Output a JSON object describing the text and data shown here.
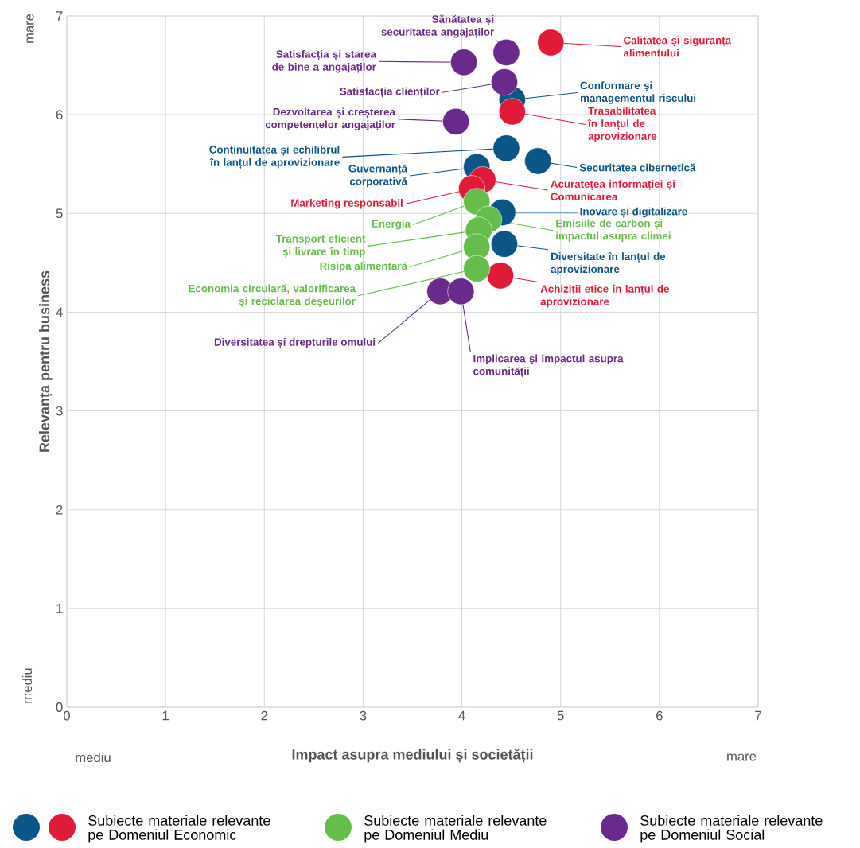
{
  "chart_data": {
    "type": "scatter",
    "xlabel": "Impact asupra mediului și societății",
    "ylabel": "Relevanța pentru business",
    "xlim": [
      0,
      7
    ],
    "ylim": [
      0,
      7
    ],
    "xticks": [
      0,
      1,
      2,
      3,
      4,
      5,
      6,
      7
    ],
    "yticks": [
      0,
      1,
      2,
      3,
      4,
      5,
      6,
      7
    ],
    "grid": true,
    "legend": "bottom",
    "marker": "circle",
    "series": [
      {
        "color": "#0b5687",
        "x": [
          4.51,
          4.45,
          4.77,
          4.15,
          4.41,
          4.43
        ],
        "values": [
          6.15,
          5.66,
          5.53,
          5.47,
          5.01,
          4.69
        ]
      },
      {
        "name": "Subiecte materiale relevante pe Domeniul Economic",
        "color": "#e01b37",
        "x": [
          4.9,
          4.51,
          4.21,
          4.1,
          4.39
        ],
        "values": [
          6.73,
          6.03,
          5.34,
          5.25,
          4.37
        ]
      },
      {
        "name": "Subiecte materiale relevante pe Domeniul Mediu",
        "color": "#66bd4c",
        "x": [
          4.15,
          4.27,
          4.17,
          4.15,
          4.15
        ],
        "values": [
          5.12,
          4.94,
          4.83,
          4.66,
          4.44
        ]
      },
      {
        "name": "Subiecte materiale relevante pe Domeniul Social",
        "color": "#6a2a8c",
        "x": [
          4.45,
          4.02,
          4.43,
          3.94,
          3.78,
          3.99
        ],
        "values": [
          6.63,
          6.53,
          6.33,
          5.93,
          4.21,
          4.21
        ]
      }
    ],
    "annotations": [
      {
        "text": "Calitatea și siguranța alimentului",
        "x": 4.9,
        "y": 6.73
      },
      {
        "text": "Conformare și managementul riscului",
        "x": 4.51,
        "y": 6.15
      },
      {
        "text": "Trasabilitatea în lanțul de aprovizionare",
        "x": 4.51,
        "y": 6.03
      },
      {
        "text": "Continuitatea și echilibrul în lanțul de aprovizionare",
        "x": 4.45,
        "y": 5.66
      },
      {
        "text": "Securitatea cibernetică",
        "x": 4.77,
        "y": 5.53
      },
      {
        "text": "Guvernanță corporativă",
        "x": 4.15,
        "y": 5.47
      },
      {
        "text": "Acuratețea informației și Comunicarea",
        "x": 4.21,
        "y": 5.34
      },
      {
        "text": "Marketing responsabil",
        "x": 4.1,
        "y": 5.25
      },
      {
        "text": "Inovare și digitalizare",
        "x": 4.41,
        "y": 5.01
      },
      {
        "text": "Diversitate în lanțul de aprovizionare",
        "x": 4.43,
        "y": 4.69
      },
      {
        "text": "Achiziții etice în lanțul de aprovizionare",
        "x": 4.39,
        "y": 4.37
      },
      {
        "text": "Energia",
        "x": 4.15,
        "y": 5.12
      },
      {
        "text": "Emisiile de carbon și impactul asupra climei",
        "x": 4.27,
        "y": 4.94
      },
      {
        "text": "Transport eficient și livrare în timp",
        "x": 4.17,
        "y": 4.83
      },
      {
        "text": "Risipa alimentară",
        "x": 4.15,
        "y": 4.66
      },
      {
        "text": "Economia circulară, valorificarea și reciclarea deșeurilor",
        "x": 4.15,
        "y": 4.44
      },
      {
        "text": "Sănătatea și securitatea angajaților",
        "x": 4.45,
        "y": 6.63
      },
      {
        "text": "Satisfacția și starea de bine a angajaților",
        "x": 4.02,
        "y": 6.53
      },
      {
        "text": "Satisfacția clienților",
        "x": 4.43,
        "y": 6.33
      },
      {
        "text": "Dezvoltarea și creșterea competențelor angajaților",
        "x": 3.94,
        "y": 5.93
      },
      {
        "text": "Diversitatea și drepturile omului",
        "x": 3.78,
        "y": 4.21
      },
      {
        "text": "Implicarea și impactul asupra comunității",
        "x": 3.99,
        "y": 4.21
      },
      "mare",
      "mediu",
      "mediu",
      "mare"
    ]
  }
}
